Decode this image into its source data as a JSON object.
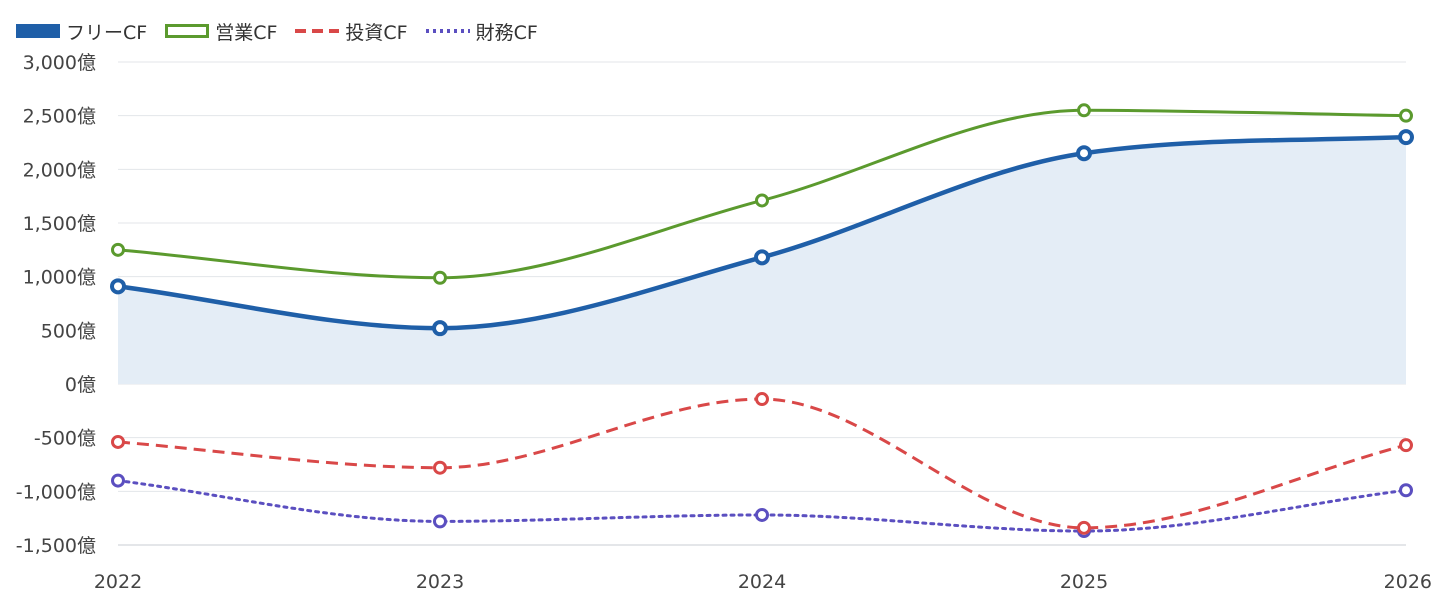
{
  "chart_data": {
    "type": "line",
    "x": [
      "2022",
      "2023",
      "2024",
      "2025",
      "2026"
    ],
    "series": [
      {
        "name": "フリーCF",
        "values": [
          910,
          520,
          1180,
          2150,
          2300
        ],
        "color": "#1f5fa8",
        "style": "solid",
        "filled_area": true,
        "fill_color": "#e4edf6"
      },
      {
        "name": "営業CF",
        "values": [
          1250,
          990,
          1710,
          2550,
          2500
        ],
        "color": "#5b9a2e",
        "style": "solid",
        "filled_area": false
      },
      {
        "name": "投資CF",
        "values": [
          -540,
          -780,
          -140,
          -1340,
          -570
        ],
        "color": "#d94848",
        "style": "dashed",
        "filled_area": false
      },
      {
        "name": "財務CF",
        "values": [
          -900,
          -1280,
          -1220,
          -1370,
          -990
        ],
        "color": "#5b4fc0",
        "style": "dotted",
        "filled_area": false
      }
    ],
    "y_ticks": [
      3000,
      2500,
      2000,
      1500,
      1000,
      500,
      0,
      -500,
      -1000,
      -1500
    ],
    "y_tick_labels": [
      "3,000億",
      "2,500億",
      "2,000億",
      "1,500億",
      "1,000億",
      "500億",
      "0億",
      "-500億",
      "-1,000億",
      "-1,500億"
    ],
    "ylim": [
      -1500,
      3000
    ],
    "grid": true,
    "legend_position": "top-left",
    "title": "",
    "xlabel": "",
    "ylabel": ""
  }
}
